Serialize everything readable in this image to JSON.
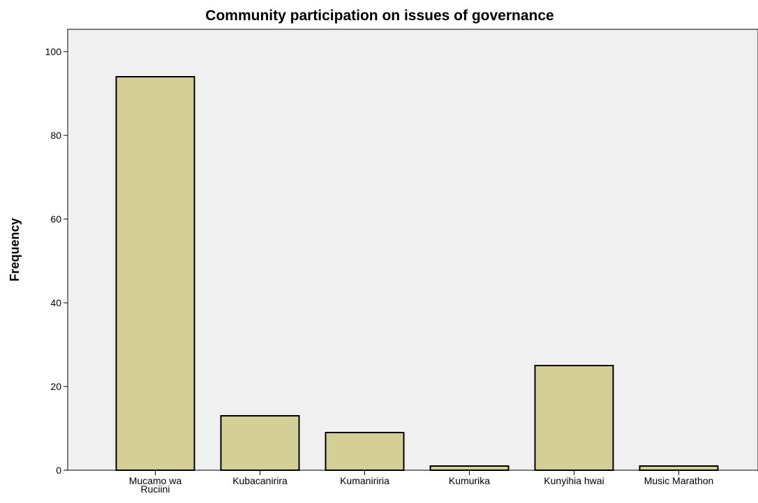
{
  "chart_data": {
    "type": "bar",
    "title": "Community participation on issues of governance",
    "xlabel": "",
    "ylabel": "Frequency",
    "categories": [
      "Mucamo wa Ruciini",
      "Kubacanirira",
      "Kumaniriria",
      "Kumurika",
      "Kunyihia hwai",
      "Music Marathon"
    ],
    "category_lines": [
      [
        "Mucamo wa",
        "Ruciini"
      ],
      [
        "Kubacanirira"
      ],
      [
        "Kumaniriria"
      ],
      [
        "Kumurika"
      ],
      [
        "Kunyihia hwai"
      ],
      [
        "Music Marathon"
      ]
    ],
    "values": [
      94,
      13,
      9,
      1,
      25,
      1
    ],
    "ylim": [
      0,
      100
    ],
    "yticks": [
      0,
      20,
      40,
      60,
      80,
      100
    ],
    "grid": false,
    "colors": {
      "bar_fill": "#d4cf97",
      "bar_stroke": "#000000",
      "plot_background": "#f0f0f0"
    }
  }
}
